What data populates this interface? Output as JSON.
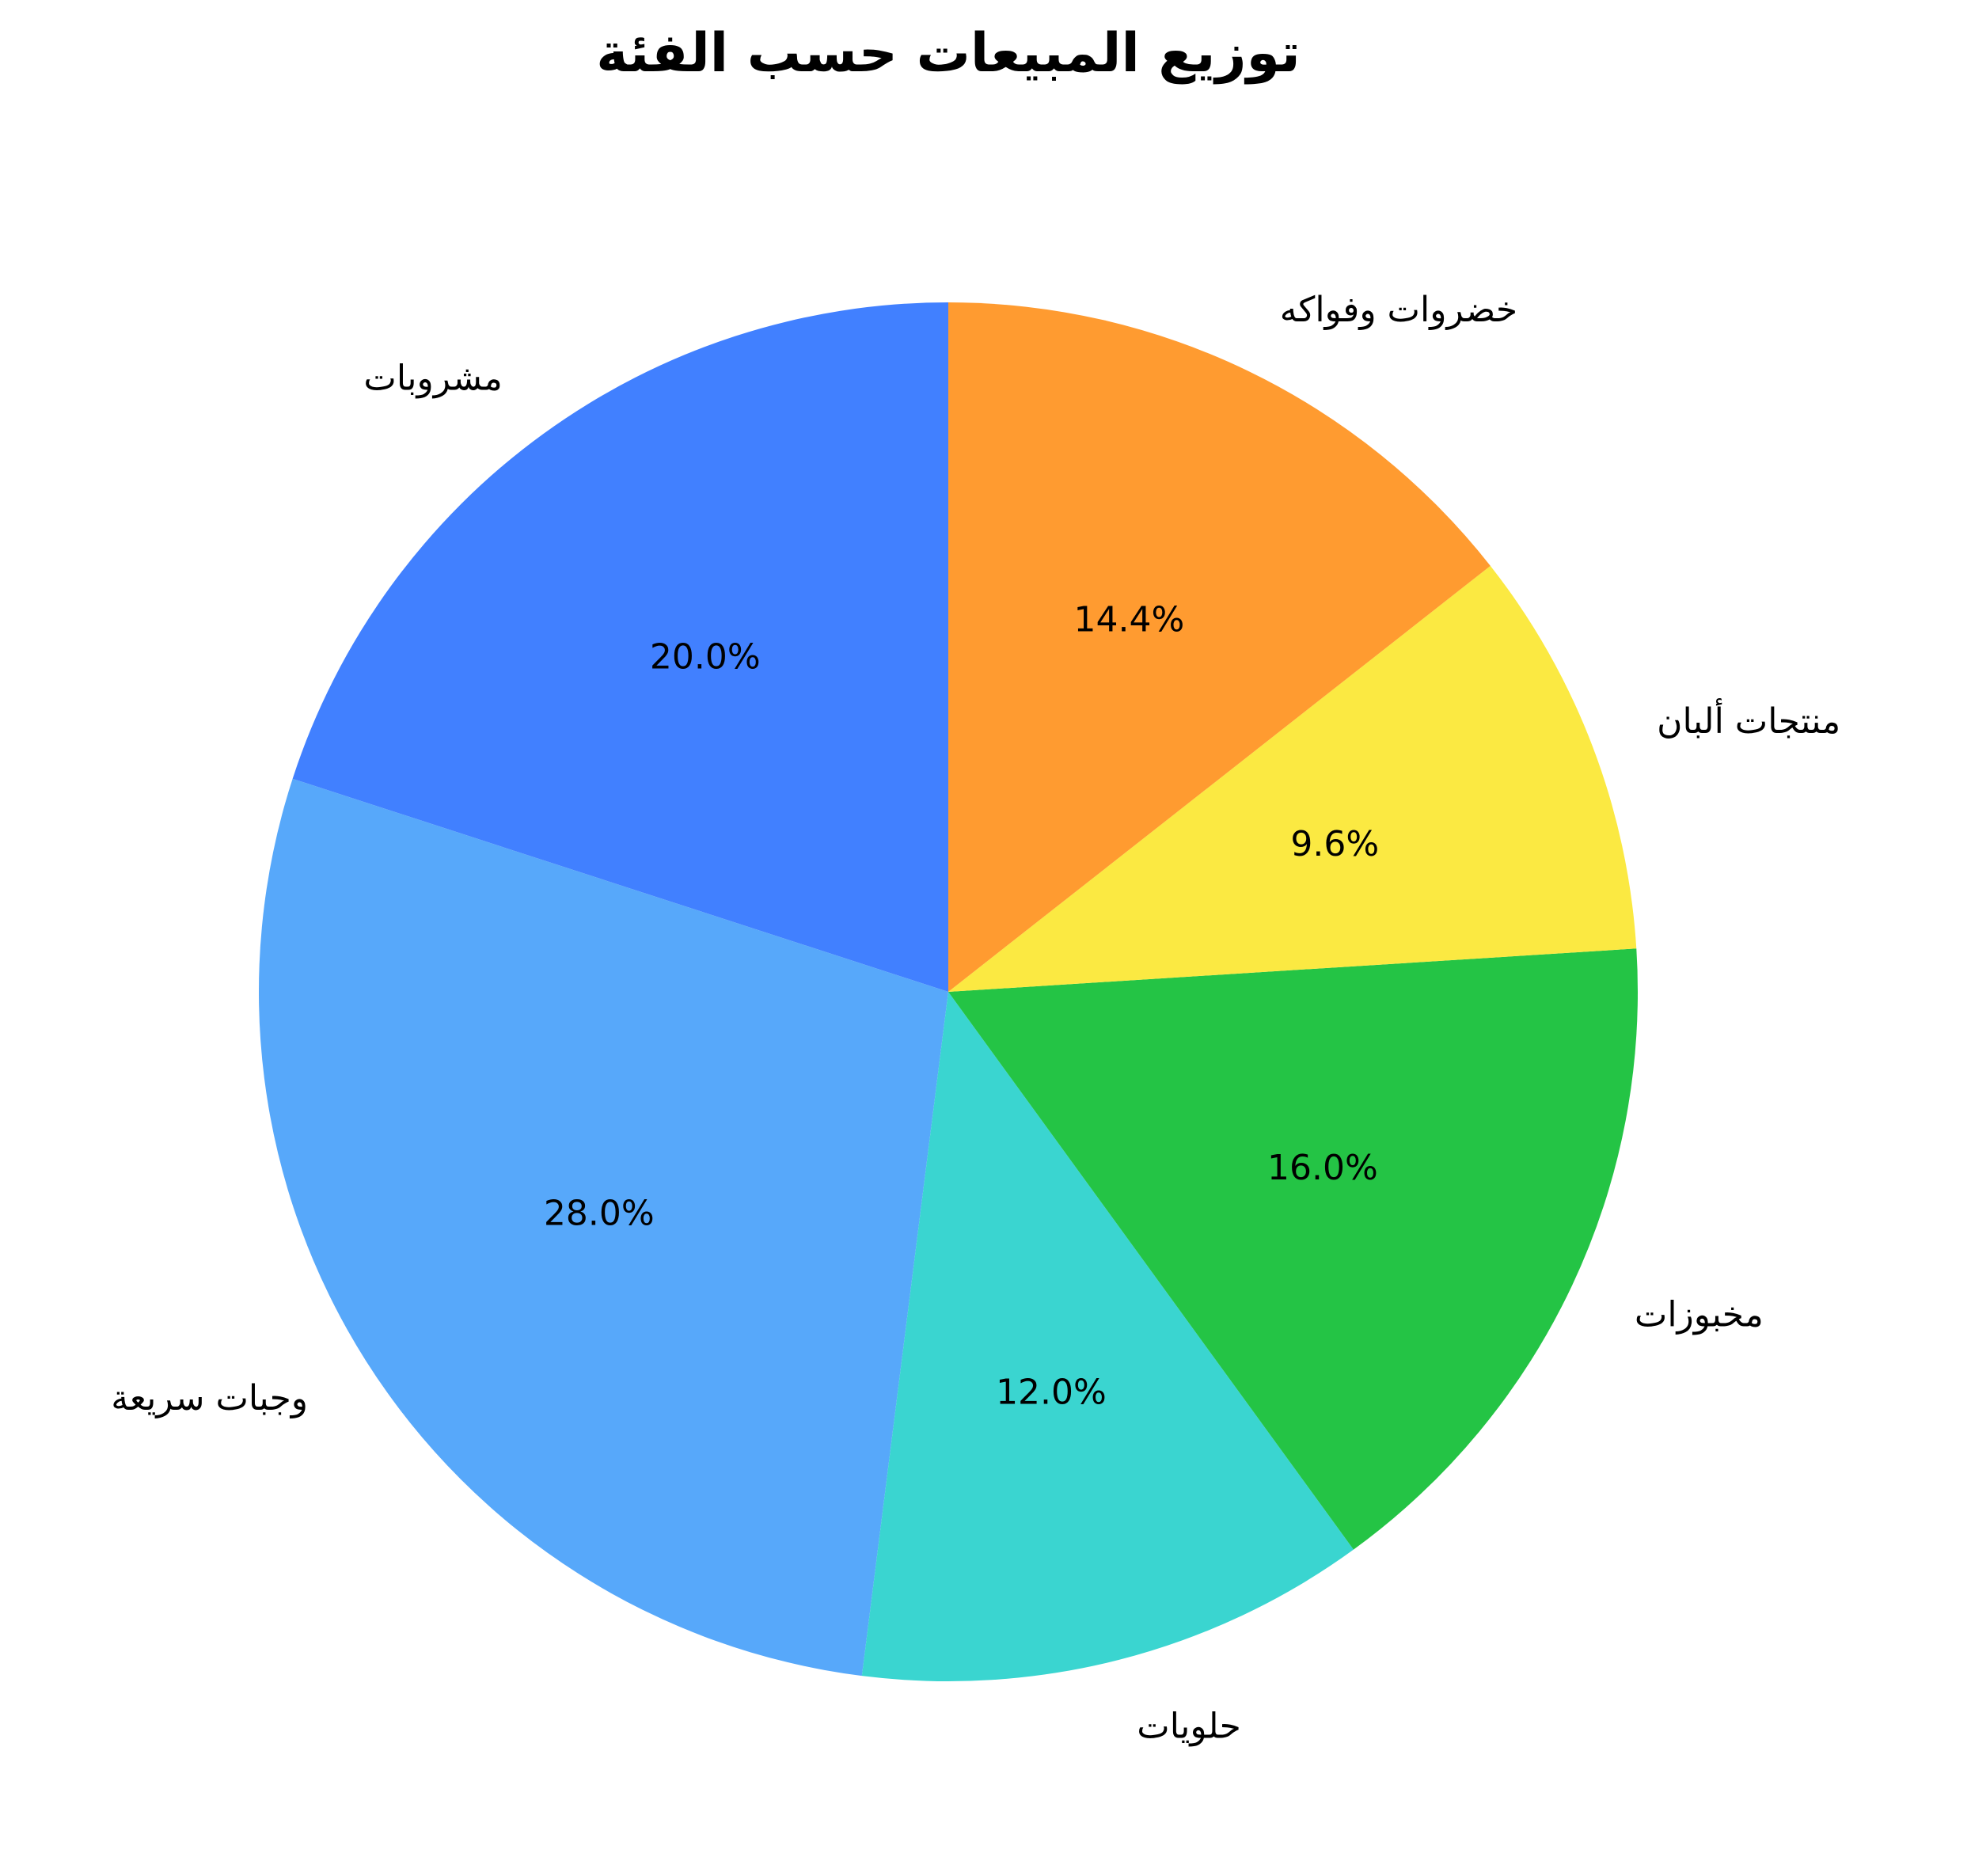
{
  "chart_data": {
    "type": "pie",
    "title": "توزيع المبيعات حسب الفئة",
    "categories": [
      "مشروبات",
      "وجبات سريعة",
      "حلويات",
      "مخبوزات",
      "منتجات ألبان",
      "خضروات وفواكه"
    ],
    "values": [
      20.0,
      28.0,
      12.0,
      16.0,
      9.6,
      14.4
    ],
    "percent_labels": [
      "20.0%",
      "28.0%",
      "12.0%",
      "16.0%",
      "9.6%",
      "14.4%"
    ],
    "colors": [
      "#4180FF",
      "#57A8FA",
      "#3AD5D0",
      "#24C445",
      "#FBE942",
      "#FF9B30"
    ],
    "start_angle_deg": 90,
    "direction": "counterclockwise",
    "legend": "none"
  }
}
